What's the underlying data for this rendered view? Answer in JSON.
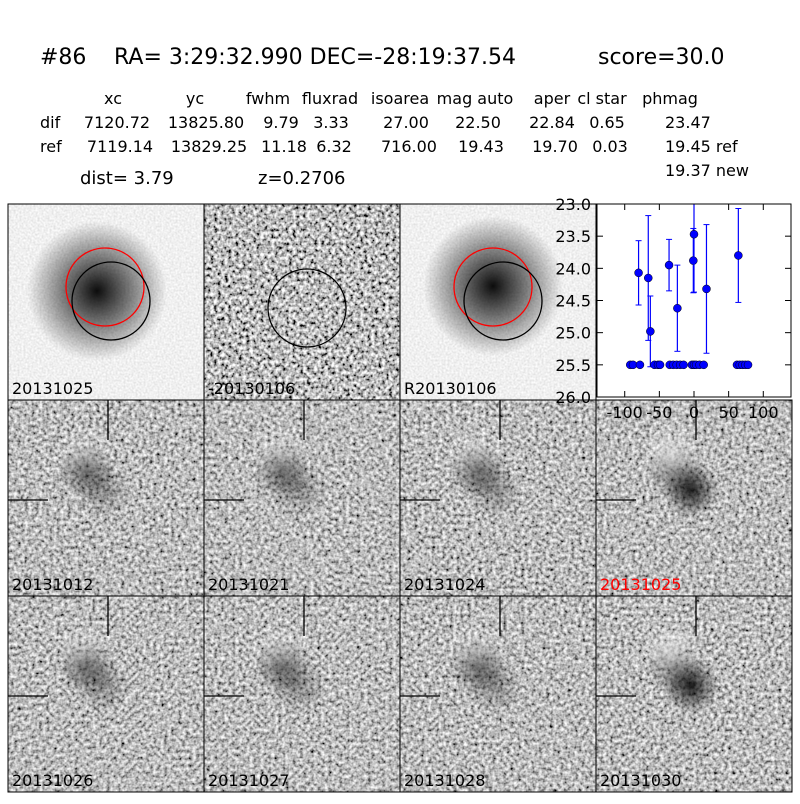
{
  "header": {
    "id": "#86",
    "coords": "RA= 3:29:32.990 DEC=-28:19:37.54",
    "score": "score=30.0"
  },
  "table": {
    "columns": [
      "xc",
      "yc",
      "fwhm",
      "fluxrad",
      "isoarea",
      "mag auto",
      "aper",
      "cl star",
      "phmag"
    ],
    "rows": [
      [
        "dif",
        "7120.72",
        "13825.80",
        "9.79",
        "3.33",
        "27.00",
        "22.50",
        "22.84",
        "0.65",
        "23.47"
      ],
      [
        "ref",
        "7119.14",
        "13829.25",
        "11.18",
        "6.32",
        "716.00",
        "19.43",
        "19.70",
        "0.03",
        "19.45 ref"
      ]
    ],
    "extra": "19.37 new"
  },
  "dist": "dist=  3.79",
  "redshift": "z=0.2706",
  "stamps": [
    "20131025",
    "-20130106",
    "R20130106",
    "20131012",
    "20131021",
    "20131024",
    "20131025",
    "20131026",
    "20131027",
    "20131028",
    "20131030"
  ],
  "chart_data": {
    "type": "scatter",
    "color": "#0000ff",
    "xlim": [
      -140,
      140
    ],
    "ylim": [
      26.0,
      23.0
    ],
    "xticks": [
      -100,
      -50,
      0,
      50,
      100
    ],
    "yticks": [
      {
        "value": 23,
        "label": "23.0"
      },
      {
        "value": 23.5,
        "label": "23.5"
      },
      {
        "value": 24,
        "label": "24.0"
      },
      {
        "value": 24.5,
        "label": "24.5"
      },
      {
        "value": 25,
        "label": "25.0"
      },
      {
        "value": 25.5,
        "label": "25.5"
      },
      {
        "value": 26,
        "label": "26.0"
      }
    ],
    "x": [
      -92,
      -88,
      -80,
      -78,
      -66,
      -63,
      -57,
      -52,
      -49,
      -36,
      -35,
      -30,
      -25,
      -24,
      -20,
      -15,
      -3,
      -1,
      0,
      0,
      3,
      8,
      14,
      18,
      62,
      64,
      66,
      70,
      74,
      78
    ],
    "values": [
      25.5,
      25.5,
      24.07,
      25.5,
      24.15,
      24.98,
      25.5,
      25.5,
      25.5,
      23.95,
      25.5,
      25.5,
      25.5,
      24.62,
      25.5,
      25.5,
      25.5,
      23.88,
      23.47,
      25.5,
      25.5,
      25.5,
      25.5,
      24.32,
      25.5,
      23.8,
      25.5,
      25.5,
      25.5,
      25.5
    ],
    "errors": [
      null,
      null,
      0.5,
      null,
      0.97,
      0.55,
      null,
      null,
      null,
      0.4,
      null,
      null,
      null,
      0.67,
      null,
      null,
      null,
      0.5,
      0.9,
      null,
      null,
      null,
      null,
      1.0,
      null,
      0.73,
      null,
      null,
      null,
      null
    ]
  }
}
